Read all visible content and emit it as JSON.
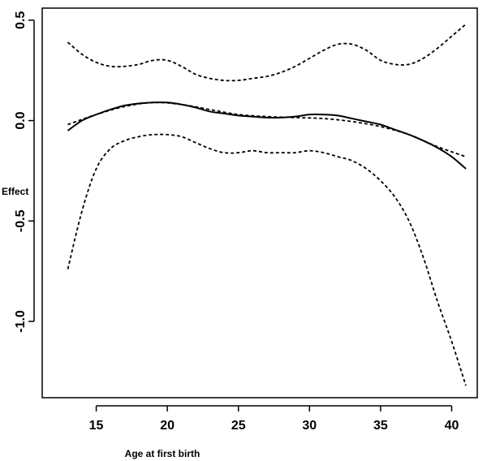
{
  "chart_data": {
    "type": "line",
    "title": "",
    "xlabel": "Age at first birth",
    "ylabel": "Effect",
    "xlim": [
      11.2,
      41.8
    ],
    "ylim": [
      -1.38,
      0.56
    ],
    "x_ticks": [
      15,
      20,
      25,
      30,
      35,
      40
    ],
    "y_ticks": [
      -1.0,
      -0.5,
      0.0,
      0.5
    ],
    "x_tick_labels": [
      "15",
      "20",
      "25",
      "30",
      "35",
      "40"
    ],
    "y_tick_labels": [
      "-1.0",
      "-0.5",
      "0.0",
      "0.5"
    ],
    "grid": false,
    "legend": "none",
    "series": [
      {
        "style": "solid",
        "x": [
          13,
          14,
          15,
          16,
          17,
          18,
          19,
          20,
          21,
          22,
          23,
          24,
          25,
          26,
          27,
          28,
          29,
          30,
          31,
          32,
          33,
          34,
          35,
          36,
          37,
          38,
          39,
          40,
          41
        ],
        "y": [
          -0.05,
          0.0,
          0.03,
          0.055,
          0.075,
          0.085,
          0.09,
          0.09,
          0.08,
          0.065,
          0.045,
          0.035,
          0.025,
          0.02,
          0.015,
          0.015,
          0.02,
          0.03,
          0.03,
          0.025,
          0.01,
          -0.005,
          -0.02,
          -0.045,
          -0.07,
          -0.1,
          -0.135,
          -0.18,
          -0.24
        ]
      },
      {
        "style": "dashed",
        "x": [
          13,
          15,
          17,
          19,
          21,
          23,
          25,
          27,
          29,
          31,
          33,
          35,
          37,
          39,
          41
        ],
        "y": [
          -0.02,
          0.03,
          0.07,
          0.09,
          0.08,
          0.055,
          0.03,
          0.02,
          0.015,
          0.01,
          -0.005,
          -0.03,
          -0.07,
          -0.13,
          -0.18
        ]
      },
      {
        "style": "dashed",
        "x": [
          13,
          14,
          15,
          16,
          17,
          18,
          19,
          20,
          21,
          22,
          23,
          24,
          25,
          26,
          27,
          28,
          29,
          30,
          31,
          32,
          33,
          34,
          35,
          36,
          37,
          38,
          39,
          40,
          41
        ],
        "y": [
          0.39,
          0.33,
          0.29,
          0.27,
          0.27,
          0.28,
          0.3,
          0.3,
          0.27,
          0.23,
          0.21,
          0.2,
          0.2,
          0.21,
          0.22,
          0.24,
          0.27,
          0.31,
          0.35,
          0.38,
          0.38,
          0.35,
          0.3,
          0.28,
          0.28,
          0.31,
          0.36,
          0.42,
          0.48
        ]
      },
      {
        "style": "dashed",
        "x": [
          13,
          14,
          15,
          16,
          17,
          18,
          19,
          20,
          21,
          22,
          23,
          24,
          25,
          26,
          27,
          28,
          29,
          30,
          31,
          32,
          33,
          34,
          35,
          36,
          37,
          38,
          39,
          40,
          41
        ],
        "y": [
          -0.74,
          -0.45,
          -0.24,
          -0.14,
          -0.1,
          -0.08,
          -0.07,
          -0.07,
          -0.08,
          -0.11,
          -0.14,
          -0.16,
          -0.16,
          -0.15,
          -0.16,
          -0.16,
          -0.16,
          -0.15,
          -0.16,
          -0.18,
          -0.2,
          -0.24,
          -0.3,
          -0.38,
          -0.5,
          -0.68,
          -0.9,
          -1.1,
          -1.32
        ]
      }
    ]
  }
}
